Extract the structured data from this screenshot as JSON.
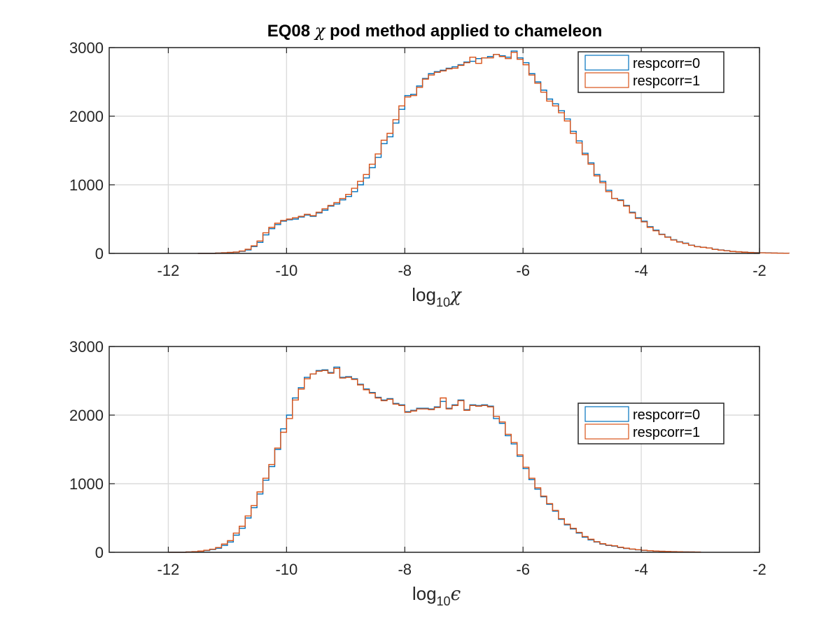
{
  "figure": {
    "title_parts": [
      "EQ08 ",
      "χ",
      " pod method applied to chameleon"
    ]
  },
  "colors": {
    "respcorr0": "#0072BD",
    "respcorr1": "#D95319"
  },
  "chart_data": [
    {
      "type": "histogram",
      "xlabel": {
        "base": "log",
        "sub": "10",
        "sym": "χ"
      },
      "xlim": [
        -13,
        -2
      ],
      "ylim": [
        0,
        3000
      ],
      "xticks": [
        -12,
        -10,
        -8,
        -6,
        -4,
        -2
      ],
      "yticks": [
        0,
        1000,
        2000,
        3000
      ],
      "xtick_labels": [
        "-12",
        "-10",
        "-8",
        "-6",
        "-4",
        "-2"
      ],
      "ytick_labels": [
        "0",
        "1000",
        "2000",
        "3000"
      ],
      "grid": true,
      "legend_position": "top-right",
      "bin_start": -11.5,
      "bin_width": 0.1,
      "series": [
        {
          "name": "respcorr=0",
          "color": "#0072BD",
          "values": [
            0,
            0,
            0,
            5,
            10,
            15,
            20,
            30,
            50,
            100,
            160,
            270,
            360,
            420,
            470,
            490,
            500,
            530,
            560,
            540,
            590,
            630,
            690,
            720,
            780,
            830,
            900,
            1000,
            1100,
            1250,
            1400,
            1600,
            1700,
            1900,
            2100,
            2300,
            2320,
            2440,
            2550,
            2620,
            2650,
            2670,
            2700,
            2720,
            2750,
            2790,
            2800,
            2840,
            2850,
            2870,
            2900,
            2880,
            2860,
            2950,
            2850,
            2780,
            2620,
            2500,
            2380,
            2250,
            2180,
            2080,
            1960,
            1780,
            1640,
            1460,
            1320,
            1150,
            1050,
            920,
            800,
            780,
            700,
            600,
            520,
            470,
            390,
            340,
            280,
            240,
            200,
            170,
            150,
            120,
            100,
            90,
            80,
            60,
            50,
            40,
            30,
            25,
            20,
            15,
            12,
            10,
            8,
            6,
            4,
            3
          ]
        },
        {
          "name": "respcorr=1",
          "color": "#D95319",
          "values": [
            0,
            0,
            0,
            5,
            10,
            15,
            20,
            35,
            60,
            110,
            180,
            300,
            380,
            440,
            480,
            500,
            520,
            540,
            570,
            550,
            600,
            650,
            700,
            740,
            800,
            860,
            950,
            1050,
            1150,
            1300,
            1450,
            1650,
            1750,
            1950,
            2150,
            2280,
            2300,
            2420,
            2540,
            2600,
            2640,
            2660,
            2690,
            2700,
            2740,
            2780,
            2860,
            2770,
            2850,
            2850,
            2900,
            2870,
            2840,
            2930,
            2830,
            2750,
            2600,
            2480,
            2350,
            2220,
            2150,
            2050,
            1930,
            1750,
            1610,
            1440,
            1300,
            1130,
            1030,
            900,
            800,
            770,
            690,
            590,
            510,
            460,
            380,
            330,
            275,
            235,
            195,
            165,
            145,
            118,
            98,
            88,
            78,
            58,
            48,
            38,
            28,
            23,
            18,
            13,
            10,
            8,
            6,
            5,
            3,
            2
          ]
        }
      ]
    },
    {
      "type": "histogram",
      "xlabel": {
        "base": "log",
        "sub": "10",
        "sym": "ϵ"
      },
      "xlim": [
        -13,
        -2
      ],
      "ylim": [
        0,
        3000
      ],
      "xticks": [
        -12,
        -10,
        -8,
        -6,
        -4,
        -2
      ],
      "yticks": [
        0,
        1000,
        2000,
        3000
      ],
      "xtick_labels": [
        "-12",
        "-10",
        "-8",
        "-6",
        "-4",
        "-2"
      ],
      "ytick_labels": [
        "0",
        "1000",
        "2000",
        "3000"
      ],
      "grid": true,
      "legend_position": "middle-right",
      "bin_start": -12.0,
      "bin_width": 0.1,
      "series": [
        {
          "name": "respcorr=0",
          "color": "#0072BD",
          "values": [
            0,
            0,
            0,
            5,
            10,
            15,
            25,
            40,
            60,
            100,
            150,
            250,
            350,
            500,
            650,
            850,
            1050,
            1250,
            1500,
            1800,
            2000,
            2250,
            2400,
            2550,
            2600,
            2650,
            2660,
            2620,
            2700,
            2550,
            2560,
            2530,
            2450,
            2380,
            2330,
            2260,
            2220,
            2240,
            2170,
            2150,
            2050,
            2070,
            2100,
            2100,
            2090,
            2120,
            2200,
            2100,
            2150,
            2220,
            2080,
            2150,
            2140,
            2150,
            2130,
            1950,
            1880,
            1700,
            1580,
            1400,
            1220,
            1060,
            920,
            810,
            700,
            600,
            480,
            400,
            340,
            280,
            220,
            180,
            150,
            120,
            100,
            90,
            70,
            55,
            45,
            35,
            28,
            22,
            18,
            14,
            11,
            9,
            7,
            5,
            4,
            3
          ]
        },
        {
          "name": "respcorr=1",
          "color": "#D95319",
          "values": [
            0,
            0,
            0,
            5,
            10,
            18,
            30,
            45,
            70,
            120,
            170,
            280,
            380,
            530,
            680,
            880,
            1080,
            1280,
            1520,
            1750,
            1950,
            2220,
            2380,
            2530,
            2600,
            2640,
            2650,
            2610,
            2680,
            2540,
            2550,
            2520,
            2440,
            2370,
            2320,
            2250,
            2210,
            2230,
            2160,
            2140,
            2040,
            2060,
            2090,
            2090,
            2080,
            2110,
            2250,
            2090,
            2140,
            2210,
            2070,
            2140,
            2130,
            2140,
            2120,
            1980,
            1900,
            1720,
            1600,
            1420,
            1240,
            1080,
            940,
            820,
            710,
            610,
            490,
            410,
            350,
            290,
            230,
            190,
            155,
            125,
            105,
            95,
            75,
            60,
            48,
            38,
            30,
            24,
            19,
            15,
            12,
            10,
            8,
            6,
            5,
            4
          ]
        }
      ]
    }
  ]
}
